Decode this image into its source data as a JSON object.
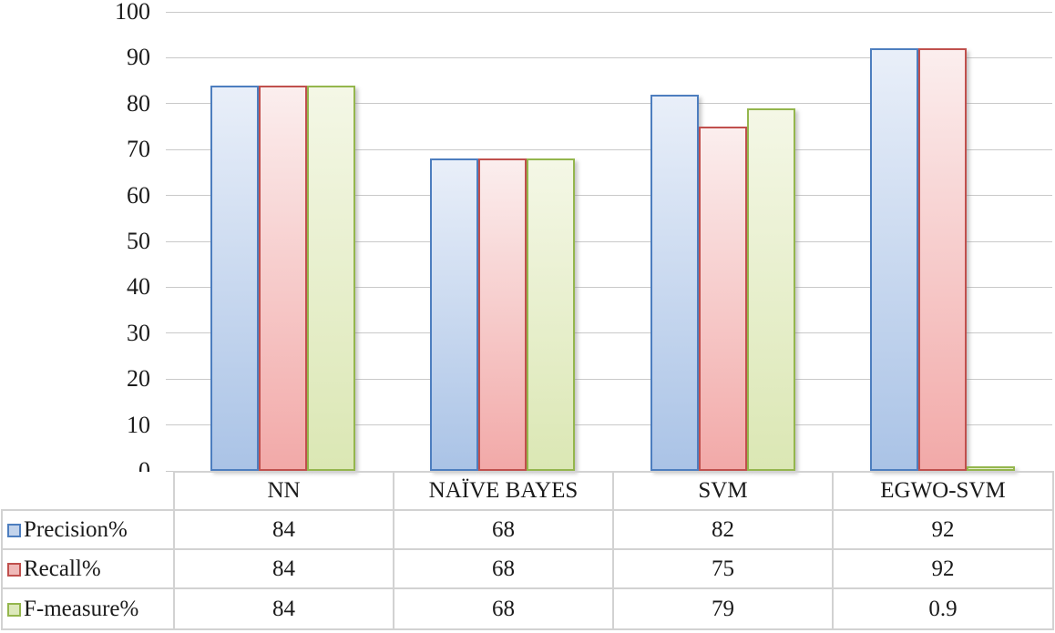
{
  "chart_data": {
    "type": "bar",
    "title": "",
    "xlabel": "",
    "ylabel": "",
    "categories": [
      "NN",
      "NAÏVE BAYES",
      "SVM",
      "EGWO-SVM"
    ],
    "series": [
      {
        "name": "Precision%",
        "values": [
          84,
          68,
          82,
          92
        ],
        "display_values": [
          "84",
          "68",
          "82",
          "92"
        ],
        "border_color": "#4d7ebf",
        "fill_top": "#e9eff9",
        "fill_bottom": "#aac3e6",
        "legend_fill": "#c2d3eb"
      },
      {
        "name": "Recall%",
        "values": [
          84,
          68,
          75,
          92
        ],
        "display_values": [
          "84",
          "68",
          "75",
          "92"
        ],
        "border_color": "#c0504d",
        "fill_top": "#fbeeee",
        "fill_bottom": "#f2a9a8",
        "legend_fill": "#efb9b8"
      },
      {
        "name": "F-measure%",
        "values": [
          84,
          68,
          79,
          0.9
        ],
        "display_values": [
          "84",
          "68",
          "79",
          "0.9"
        ],
        "border_color": "#94b64d",
        "fill_top": "#f4f7e6",
        "fill_bottom": "#dbe7b4",
        "legend_fill": "#dde9bc"
      }
    ],
    "ylim": [
      0,
      100
    ],
    "yticks": [
      0,
      10,
      20,
      30,
      40,
      50,
      60,
      70,
      80,
      90,
      100
    ],
    "grid": true,
    "gridline_color": "#c9c9c9",
    "legend_position": "table-left-column"
  }
}
